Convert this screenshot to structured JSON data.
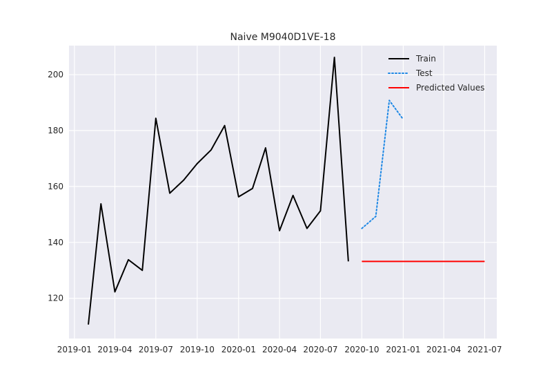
{
  "chart_data": {
    "type": "line",
    "title": "Naive M9040D1VE-18",
    "xlabel": "",
    "ylabel": "",
    "x_axis_type": "date",
    "xlim": [
      "2018-12-20",
      "2021-07-28"
    ],
    "ylim": [
      105.6,
      210.4
    ],
    "grid": true,
    "legend_position": "top-right",
    "x_ticks": [
      "2019-01",
      "2019-04",
      "2019-07",
      "2019-10",
      "2020-01",
      "2020-04",
      "2020-07",
      "2020-10",
      "2021-01",
      "2021-04",
      "2021-07"
    ],
    "y_ticks": [
      120,
      140,
      160,
      180,
      200
    ],
    "series": [
      {
        "name": "Train",
        "color": "#000000",
        "style": "solid",
        "points": [
          {
            "x": "2019-02-01",
            "y": 110.6
          },
          {
            "x": "2019-03-01",
            "y": 153.8
          },
          {
            "x": "2019-04-01",
            "y": 122.3
          },
          {
            "x": "2019-05-01",
            "y": 133.8
          },
          {
            "x": "2019-06-01",
            "y": 130.0
          },
          {
            "x": "2019-07-01",
            "y": 184.4
          },
          {
            "x": "2019-08-01",
            "y": 157.6
          },
          {
            "x": "2019-09-01",
            "y": 162.3
          },
          {
            "x": "2019-10-01",
            "y": 168.2
          },
          {
            "x": "2019-11-01",
            "y": 173.1
          },
          {
            "x": "2019-12-01",
            "y": 181.8
          },
          {
            "x": "2020-01-01",
            "y": 156.3
          },
          {
            "x": "2020-02-01",
            "y": 159.3
          },
          {
            "x": "2020-03-01",
            "y": 173.8
          },
          {
            "x": "2020-04-01",
            "y": 144.2
          },
          {
            "x": "2020-05-01",
            "y": 156.8
          },
          {
            "x": "2020-06-01",
            "y": 145.0
          },
          {
            "x": "2020-07-01",
            "y": 151.3
          },
          {
            "x": "2020-08-01",
            "y": 206.2
          },
          {
            "x": "2020-09-01",
            "y": 133.2
          }
        ]
      },
      {
        "name": "Test",
        "color": "#1e88e5",
        "style": "dotted",
        "points": [
          {
            "x": "2020-10-01",
            "y": 145.0
          },
          {
            "x": "2020-11-01",
            "y": 149.3
          },
          {
            "x": "2020-12-01",
            "y": 190.8
          },
          {
            "x": "2021-01-01",
            "y": 184.0
          }
        ]
      },
      {
        "name": "Predicted Values",
        "color": "#ff0000",
        "style": "solid",
        "points": [
          {
            "x": "2020-10-01",
            "y": 133.2
          },
          {
            "x": "2021-07-01",
            "y": 133.2
          }
        ]
      }
    ]
  }
}
